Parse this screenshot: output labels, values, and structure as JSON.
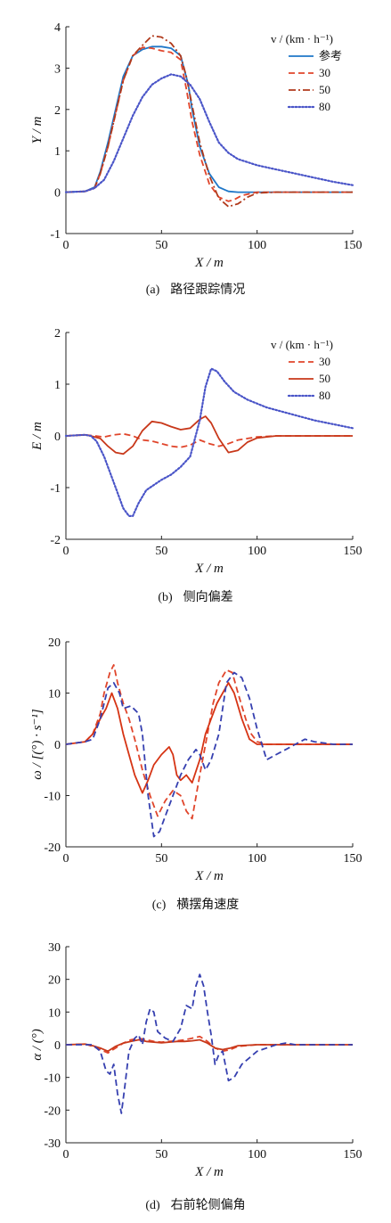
{
  "chart_data": [
    {
      "type": "line",
      "caption_letter": "(a)",
      "caption": "路径跟踪情况",
      "xlabel": "X / m",
      "ylabel": "Y / m",
      "xlim": [
        0,
        150
      ],
      "ylim": [
        -1,
        4
      ],
      "xticks": [
        "0",
        "50",
        "100",
        "150"
      ],
      "yticks": [
        "-1",
        "0",
        "1",
        "2",
        "3",
        "4"
      ],
      "legend_title": "v / (km · h⁻¹)",
      "legend_placement": "top-right",
      "series": [
        {
          "name": "参考",
          "color": "#1f77c8",
          "dash": "solid",
          "x": [
            0,
            10,
            15,
            18,
            22,
            26,
            30,
            35,
            40,
            45,
            50,
            55,
            60,
            64,
            66,
            70,
            75,
            80,
            85,
            90,
            100,
            150
          ],
          "y": [
            0,
            0.02,
            0.12,
            0.5,
            1.2,
            2.0,
            2.8,
            3.3,
            3.45,
            3.52,
            3.52,
            3.48,
            3.3,
            2.6,
            2.0,
            1.1,
            0.45,
            0.12,
            0.02,
            0,
            0,
            0
          ]
        },
        {
          "name": "30",
          "color": "#e0452b",
          "dash": "dashed",
          "x": [
            0,
            10,
            15,
            18,
            22,
            26,
            30,
            35,
            40,
            45,
            50,
            55,
            60,
            63,
            66,
            70,
            75,
            80,
            85,
            88,
            92,
            100,
            110,
            150
          ],
          "y": [
            0,
            0.02,
            0.1,
            0.45,
            1.1,
            1.9,
            2.7,
            3.3,
            3.5,
            3.48,
            3.42,
            3.38,
            3.2,
            2.5,
            1.7,
            0.9,
            0.2,
            -0.12,
            -0.22,
            -0.18,
            -0.08,
            0,
            0,
            0
          ]
        },
        {
          "name": "50",
          "color": "#b03a1c",
          "dash": "dashdot",
          "x": [
            0,
            10,
            15,
            18,
            22,
            26,
            30,
            35,
            40,
            45,
            50,
            55,
            60,
            63,
            66,
            70,
            75,
            80,
            85,
            90,
            95,
            100,
            110,
            150
          ],
          "y": [
            0,
            0.02,
            0.1,
            0.45,
            1.1,
            1.9,
            2.7,
            3.3,
            3.55,
            3.78,
            3.75,
            3.6,
            3.3,
            2.8,
            2.1,
            1.2,
            0.4,
            -0.15,
            -0.35,
            -0.28,
            -0.12,
            -0.02,
            0,
            0
          ]
        },
        {
          "name": "80",
          "color": "#4a55c8",
          "dash": "dotted",
          "x": [
            0,
            10,
            15,
            20,
            25,
            30,
            35,
            40,
            45,
            50,
            55,
            60,
            65,
            70,
            75,
            80,
            85,
            90,
            100,
            110,
            120,
            130,
            140,
            150
          ],
          "y": [
            0,
            0.02,
            0.1,
            0.3,
            0.75,
            1.3,
            1.85,
            2.3,
            2.6,
            2.75,
            2.85,
            2.8,
            2.6,
            2.25,
            1.7,
            1.2,
            0.95,
            0.8,
            0.65,
            0.55,
            0.45,
            0.35,
            0.25,
            0.17
          ]
        }
      ]
    },
    {
      "type": "line",
      "caption_letter": "(b)",
      "caption": "侧向偏差",
      "xlabel": "X / m",
      "ylabel": "E / m",
      "xlim": [
        0,
        150
      ],
      "ylim": [
        -2,
        2
      ],
      "xticks": [
        "0",
        "50",
        "100",
        "150"
      ],
      "yticks": [
        "-2",
        "-1",
        "0",
        "1",
        "2"
      ],
      "legend_title": "v / (km · h⁻¹)",
      "legend_placement": "top-right",
      "series": [
        {
          "name": "30",
          "color": "#e0452b",
          "dash": "dashed",
          "x": [
            0,
            10,
            15,
            20,
            25,
            30,
            35,
            40,
            45,
            50,
            55,
            60,
            65,
            70,
            75,
            80,
            85,
            90,
            100,
            110,
            150
          ],
          "y": [
            0,
            0.02,
            0,
            -0.02,
            0.02,
            0.04,
            0,
            -0.08,
            -0.1,
            -0.15,
            -0.2,
            -0.22,
            -0.18,
            -0.08,
            -0.15,
            -0.2,
            -0.15,
            -0.08,
            -0.02,
            0,
            0
          ]
        },
        {
          "name": "50",
          "color": "#c8381a",
          "dash": "solid",
          "x": [
            0,
            10,
            13,
            18,
            22,
            26,
            30,
            35,
            40,
            45,
            50,
            55,
            60,
            65,
            70,
            73,
            76,
            80,
            85,
            90,
            95,
            100,
            110,
            150
          ],
          "y": [
            0,
            0.02,
            0,
            -0.05,
            -0.2,
            -0.32,
            -0.35,
            -0.2,
            0.1,
            0.28,
            0.25,
            0.18,
            0.12,
            0.15,
            0.32,
            0.38,
            0.25,
            -0.05,
            -0.32,
            -0.28,
            -0.12,
            -0.04,
            0,
            0
          ]
        },
        {
          "name": "80",
          "color": "#4a55c8",
          "dash": "dotted",
          "x": [
            0,
            10,
            13,
            16,
            20,
            25,
            30,
            33,
            35,
            38,
            42,
            46,
            50,
            55,
            60,
            65,
            70,
            73,
            76,
            79,
            83,
            88,
            95,
            105,
            115,
            130,
            150
          ],
          "y": [
            0,
            0.02,
            0,
            -0.1,
            -0.4,
            -0.9,
            -1.4,
            -1.55,
            -1.55,
            -1.3,
            -1.05,
            -0.95,
            -0.85,
            -0.75,
            -0.6,
            -0.4,
            0.3,
            0.95,
            1.3,
            1.25,
            1.05,
            0.85,
            0.7,
            0.55,
            0.45,
            0.3,
            0.15
          ]
        }
      ]
    },
    {
      "type": "line",
      "caption_letter": "(c)",
      "caption": "横摆角速度",
      "xlabel": "X / m",
      "ylabel": "ω / [(°) · s⁻¹]",
      "xlim": [
        0,
        150
      ],
      "ylim": [
        -20,
        20
      ],
      "xticks": [
        "0",
        "50",
        "100",
        "150"
      ],
      "yticks": [
        "-20",
        "-10",
        "0",
        "10",
        "20"
      ],
      "series": [
        {
          "color": "#e0452b",
          "dash": "dashed",
          "x": [
            0,
            10,
            14,
            18,
            20,
            23,
            25,
            27,
            30,
            33,
            36,
            40,
            44,
            48,
            52,
            56,
            60,
            63,
            66,
            70,
            74,
            77,
            80,
            84,
            87,
            90,
            94,
            97,
            100,
            105,
            110,
            150
          ],
          "y": [
            0,
            0.5,
            2,
            6,
            10,
            14,
            15.5,
            12,
            8,
            5,
            1,
            -5,
            -10,
            -14,
            -11,
            -9,
            -10,
            -13,
            -14.5,
            -6,
            2,
            8,
            12,
            14.5,
            14,
            10,
            5,
            2,
            0.5,
            0,
            0,
            0
          ]
        },
        {
          "color": "#d63414",
          "dash": "solid",
          "x": [
            0,
            10,
            14,
            18,
            21,
            24,
            27,
            30,
            33,
            36,
            40,
            43,
            46,
            50,
            54,
            56,
            58,
            60,
            63,
            66,
            70,
            73,
            76,
            79,
            82,
            85,
            88,
            92,
            96,
            100,
            110,
            150
          ],
          "y": [
            0,
            0.5,
            2,
            5,
            7,
            10,
            7,
            2,
            -2,
            -6,
            -9.5,
            -7,
            -4,
            -2,
            -0.5,
            -2,
            -6,
            -7,
            -6,
            -7.5,
            -3,
            2,
            5,
            8,
            10,
            12,
            10,
            5,
            1,
            0,
            0,
            0
          ]
        },
        {
          "color": "#3640b0",
          "dash": "dashed",
          "x": [
            0,
            10,
            14,
            18,
            22,
            25,
            28,
            30,
            34,
            38,
            40,
            43,
            46,
            49,
            52,
            56,
            60,
            64,
            68,
            70,
            73,
            76,
            80,
            84,
            88,
            92,
            96,
            100,
            105,
            110,
            115,
            120,
            125,
            130,
            140,
            150
          ],
          "y": [
            0,
            0.5,
            1,
            5,
            11,
            12,
            10,
            7,
            7.5,
            6,
            2,
            -10,
            -18,
            -17,
            -14,
            -10,
            -6,
            -3,
            -1,
            -2,
            -5,
            -3,
            2,
            12,
            14,
            13,
            9,
            3,
            -3,
            -2,
            -1,
            0,
            1,
            0.5,
            0,
            0
          ]
        }
      ]
    },
    {
      "type": "line",
      "caption_letter": "(d)",
      "caption": "右前轮侧偏角",
      "xlabel": "X / m",
      "ylabel": "α / (°)",
      "xlim": [
        0,
        150
      ],
      "ylim": [
        -30,
        30
      ],
      "xticks": [
        "0",
        "50",
        "100",
        "150"
      ],
      "yticks": [
        "-30",
        "-20",
        "-10",
        "0",
        "10",
        "20",
        "30"
      ],
      "series": [
        {
          "color": "#e0452b",
          "dash": "dashed",
          "x": [
            0,
            10,
            14,
            18,
            22,
            26,
            30,
            34,
            38,
            42,
            46,
            50,
            54,
            58,
            62,
            66,
            70,
            74,
            78,
            82,
            86,
            90,
            100,
            110,
            150
          ],
          "y": [
            0,
            0.2,
            -0.5,
            -1.5,
            -2.5,
            -1,
            0.5,
            1.5,
            2,
            1.5,
            1,
            0.8,
            1,
            1.2,
            1.5,
            2,
            2.5,
            1,
            -1,
            -2,
            -1.5,
            -0.5,
            0,
            0,
            0
          ]
        },
        {
          "color": "#c8381a",
          "dash": "solid",
          "x": [
            0,
            10,
            14,
            18,
            22,
            26,
            30,
            34,
            38,
            42,
            46,
            50,
            54,
            58,
            62,
            66,
            70,
            74,
            78,
            82,
            86,
            90,
            100,
            110,
            150
          ],
          "y": [
            0,
            0.2,
            -0.3,
            -1,
            -2,
            -0.5,
            0.5,
            1,
            1.5,
            1,
            0.8,
            0.6,
            0.8,
            1,
            1,
            1.2,
            1.5,
            0.5,
            -1,
            -1.5,
            -1,
            -0.3,
            0,
            0,
            0
          ]
        },
        {
          "color": "#3640b0",
          "dash": "dashed",
          "x": [
            0,
            10,
            14,
            18,
            21,
            23,
            25,
            27,
            29,
            31,
            33,
            36,
            38,
            40,
            42,
            44,
            46,
            48,
            52,
            56,
            60,
            63,
            66,
            68,
            70,
            72,
            74,
            76,
            78,
            80,
            82,
            85,
            88,
            92,
            96,
            100,
            105,
            110,
            115,
            120,
            150
          ],
          "y": [
            0,
            0,
            0,
            -2,
            -8,
            -9,
            -6,
            -15,
            -21,
            -12,
            -2,
            2,
            3,
            0,
            7,
            11,
            10,
            4,
            2,
            1,
            5,
            12,
            11,
            18,
            21.5,
            18,
            10,
            3,
            -6,
            -3,
            -2,
            -11,
            -10,
            -6,
            -4,
            -2,
            -1,
            0,
            0.5,
            0,
            0
          ]
        }
      ]
    }
  ]
}
